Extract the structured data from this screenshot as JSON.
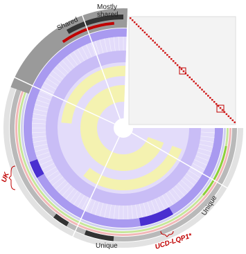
{
  "labels": {
    "shared": "Shared",
    "mostly_shared": [
      "Mostly",
      "shared"
    ],
    "uk": "UK",
    "unique_right": "Unique",
    "unique_bottom": "Unique",
    "ucd": "UCD-LQP1*"
  }
}
